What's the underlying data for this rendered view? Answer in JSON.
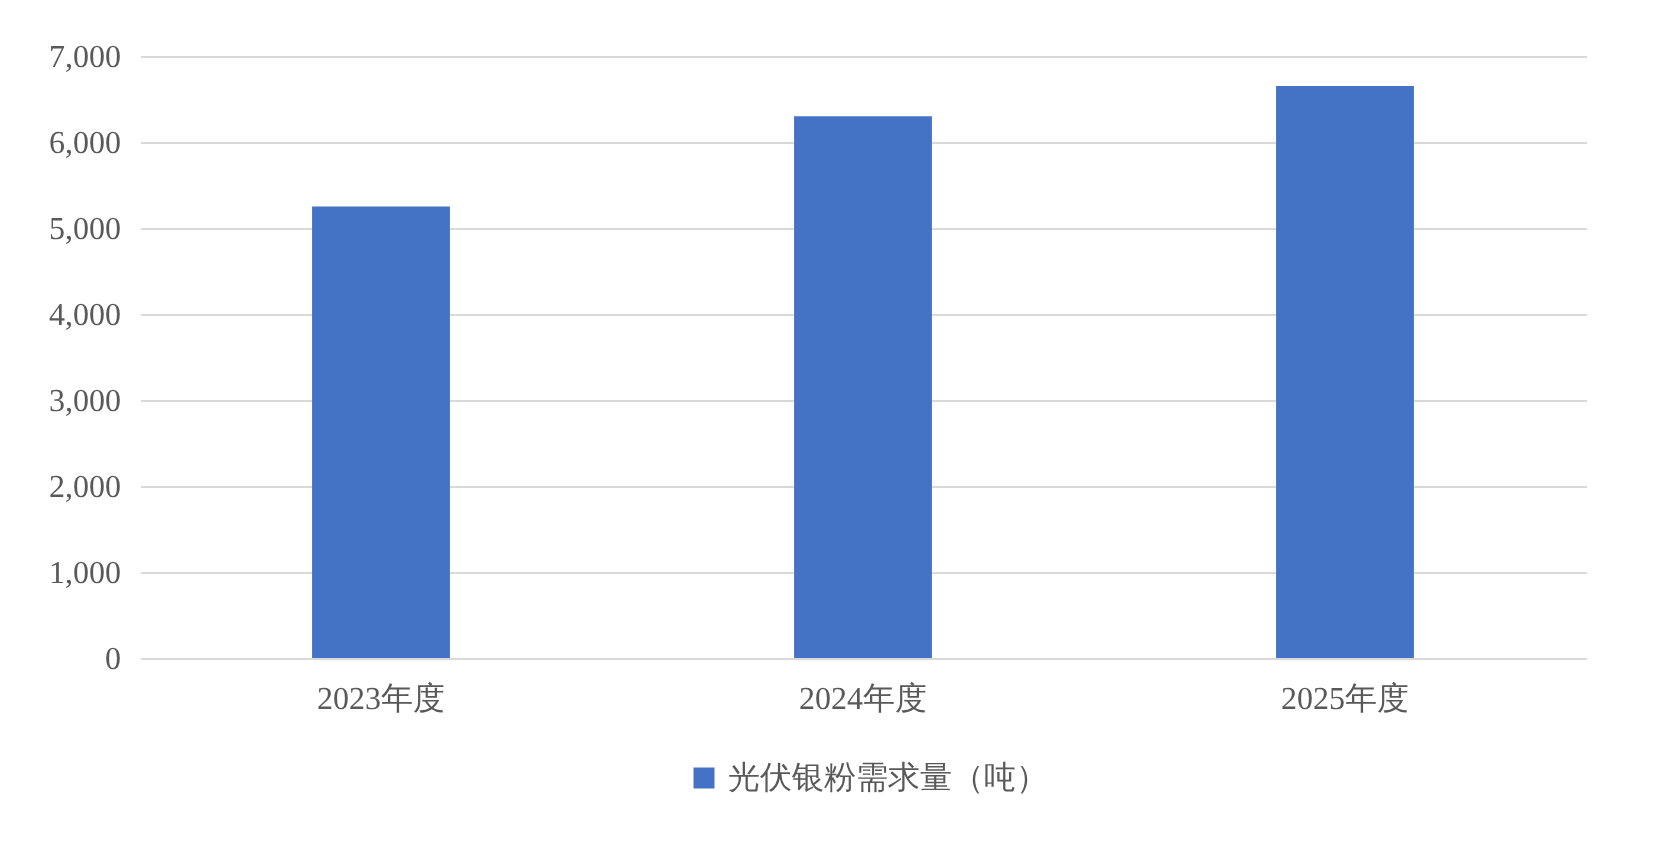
{
  "chart_data": {
    "type": "bar",
    "categories": [
      "2023年度",
      "2024年度",
      "2025年度"
    ],
    "series": [
      {
        "name": "光伏银粉需求量（吨）",
        "color": "#4472c4",
        "values": [
          5250,
          6300,
          6650
        ]
      }
    ],
    "ylim": [
      0,
      7000
    ],
    "yticks": [
      0,
      {
        "value": 1000,
        "label": "1,000"
      },
      {
        "value": 2000,
        "label": "2,000"
      },
      {
        "value": 3000,
        "label": "3,000"
      },
      {
        "value": 4000,
        "label": "4,000"
      },
      {
        "value": 5000,
        "label": "5,000"
      },
      {
        "value": 6000,
        "label": "6,000"
      },
      {
        "value": 7000,
        "label": "7,000"
      }
    ],
    "grid": "y",
    "legend": "bottom"
  }
}
